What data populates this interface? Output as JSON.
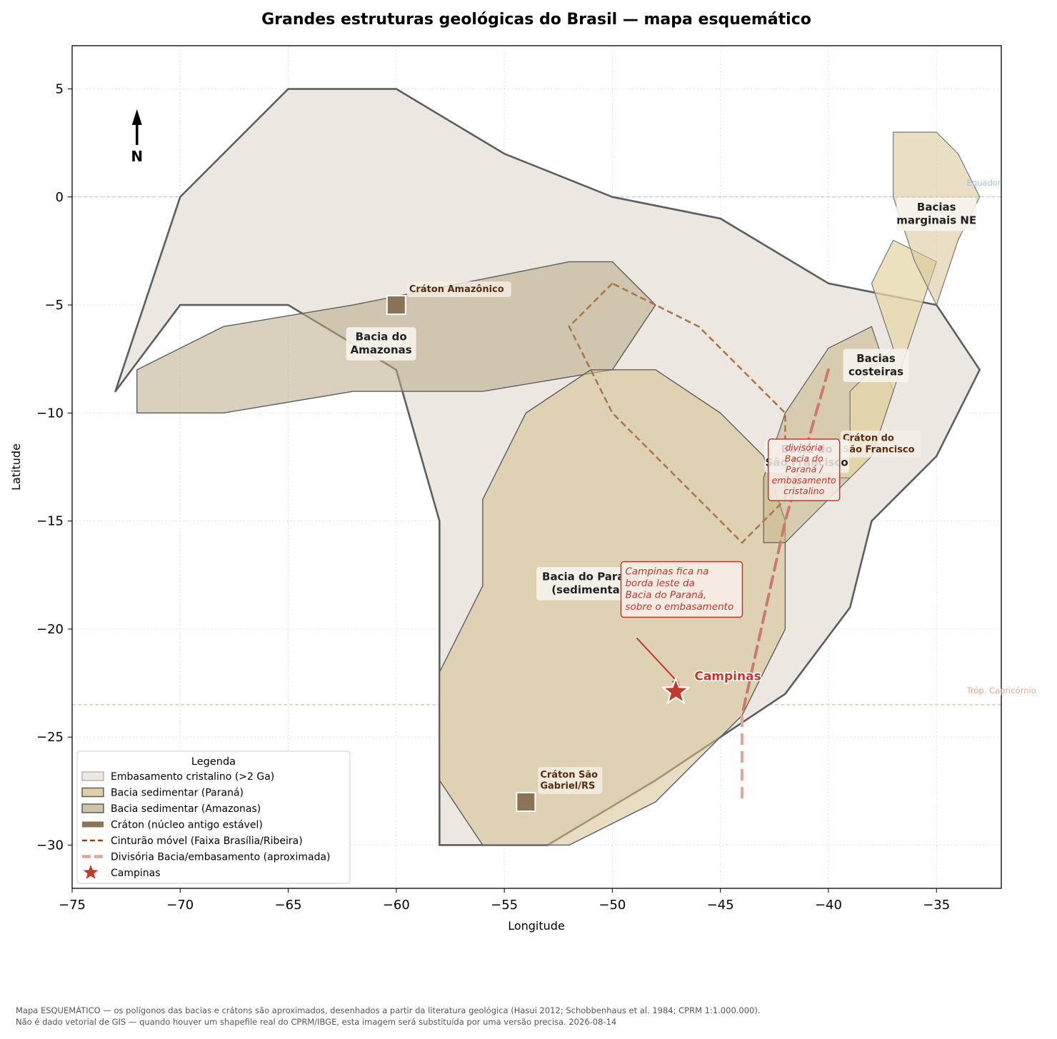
{
  "title": "Grandes estruturas geológicas do Brasil — mapa esquemático",
  "axes": {
    "xlabel": "Longitude",
    "ylabel": "Latitude",
    "xlim": [
      -75,
      -32
    ],
    "ylim": [
      -32,
      7
    ],
    "xticks": [
      -75,
      -70,
      -65,
      -60,
      -55,
      -50,
      -45,
      -40,
      -35
    ],
    "yticks": [
      5,
      0,
      -5,
      -10,
      -15,
      -20,
      -25,
      -30
    ],
    "xtick_labels": [
      "−75",
      "−70",
      "−65",
      "−60",
      "−55",
      "−50",
      "−45",
      "−40",
      "−35"
    ],
    "ytick_labels": [
      "5",
      "0",
      "−5",
      "−10",
      "−15",
      "−20",
      "−25",
      "−30"
    ],
    "grid": true
  },
  "north_arrow": "N",
  "colors": {
    "embasamento": "#ece8e1",
    "parana": "#dfcfaa",
    "amazonas": "#cfc4aa",
    "coastal": "#e6d9b5",
    "craton": "#8b7356",
    "cinturao": "#a8794a",
    "divisoria": "#cc7a6d",
    "campinas": "#c0392b",
    "equator": "#9fc3dd",
    "tropic": "#e8a98f"
  },
  "reference_lines": [
    {
      "name": "equator",
      "label": "Equador",
      "lat": 0
    },
    {
      "name": "tropic",
      "label": "Tróp. Capricórnio",
      "lat": -23.5
    }
  ],
  "regions": [
    {
      "name": "embasamento",
      "coords": [
        [
          -73,
          -9
        ],
        [
          -70,
          0
        ],
        [
          -65,
          5
        ],
        [
          -60,
          5
        ],
        [
          -55,
          2
        ],
        [
          -50,
          0
        ],
        [
          -45,
          -1
        ],
        [
          -40,
          -4
        ],
        [
          -35,
          -5
        ],
        [
          -33,
          -8
        ],
        [
          -35,
          -12
        ],
        [
          -38,
          -15
        ],
        [
          -39,
          -19
        ],
        [
          -42,
          -23
        ],
        [
          -45,
          -25
        ],
        [
          -48,
          -27
        ],
        [
          -53,
          -30
        ],
        [
          -58,
          -30
        ],
        [
          -58,
          -15
        ],
        [
          -60,
          -8
        ],
        [
          -65,
          -5
        ],
        [
          -70,
          -5
        ]
      ]
    },
    {
      "name": "amazonas",
      "coords": [
        [
          -72,
          -8
        ],
        [
          -68,
          -6
        ],
        [
          -62,
          -5
        ],
        [
          -57,
          -4
        ],
        [
          -52,
          -3
        ],
        [
          -50,
          -3
        ],
        [
          -48,
          -5
        ],
        [
          -50,
          -8
        ],
        [
          -56,
          -9
        ],
        [
          -62,
          -9
        ],
        [
          -68,
          -10
        ],
        [
          -72,
          -10
        ]
      ]
    },
    {
      "name": "parana",
      "coords": [
        [
          -56,
          -14
        ],
        [
          -54,
          -10
        ],
        [
          -51,
          -8
        ],
        [
          -48,
          -8
        ],
        [
          -45,
          -10
        ],
        [
          -43,
          -12
        ],
        [
          -42,
          -15
        ],
        [
          -42,
          -20
        ],
        [
          -44,
          -24
        ],
        [
          -48,
          -28
        ],
        [
          -52,
          -30
        ],
        [
          -56,
          -30
        ],
        [
          -58,
          -27
        ],
        [
          -58,
          -22
        ],
        [
          -56,
          -18
        ]
      ]
    },
    {
      "name": "sao-francisco",
      "coords": [
        [
          -43,
          -13
        ],
        [
          -42,
          -10
        ],
        [
          -40,
          -7
        ],
        [
          -38,
          -6
        ],
        [
          -37,
          -9
        ],
        [
          -38,
          -12
        ],
        [
          -40,
          -14
        ],
        [
          -42,
          -16
        ],
        [
          -43,
          -16
        ]
      ]
    },
    {
      "name": "costeiras",
      "coords": [
        [
          -38,
          -4
        ],
        [
          -37,
          -2
        ],
        [
          -35,
          -3
        ],
        [
          -36,
          -6
        ],
        [
          -37,
          -9
        ],
        [
          -38,
          -12
        ],
        [
          -39,
          -13
        ],
        [
          -40,
          -13
        ],
        [
          -39,
          -11
        ],
        [
          -39,
          -9
        ],
        [
          -37,
          -7
        ]
      ]
    },
    {
      "name": "marginais-ne",
      "coords": [
        [
          -37,
          3
        ],
        [
          -35,
          3
        ],
        [
          -34,
          2
        ],
        [
          -33,
          0
        ],
        [
          -34,
          -2
        ],
        [
          -35,
          -5
        ],
        [
          -36,
          -3
        ],
        [
          -37,
          0
        ]
      ]
    }
  ],
  "cinturao": [
    [
      -50,
      -4
    ],
    [
      -52,
      -6
    ],
    [
      -50,
      -10
    ],
    [
      -44,
      -16
    ],
    [
      -42,
      -14
    ],
    [
      -42,
      -10
    ],
    [
      -44,
      -8
    ],
    [
      -46,
      -6
    ],
    [
      -48,
      -5
    ],
    [
      -50,
      -4
    ]
  ],
  "divisoria": [
    [
      -40,
      -8
    ],
    [
      -42,
      -15
    ],
    [
      -44,
      -24
    ],
    [
      -44,
      -28
    ]
  ],
  "cratons": [
    {
      "name": "craton-amazonico",
      "lon": -60,
      "lat": -5,
      "label": "Cráton Amazônico"
    },
    {
      "name": "craton-sao-gabriel",
      "lon": -54,
      "lat": -28,
      "label": "Cráton São\nGabriel/RS"
    },
    {
      "name": "craton-sao-francisco",
      "lon": -40,
      "lat": -11.5,
      "label": "Cráton do\nSão Francisco"
    }
  ],
  "region_labels": [
    {
      "name": "bacia-amazonas",
      "text": "Bacia do\nAmazonas",
      "lon": -60.7,
      "lat": -6.8
    },
    {
      "name": "bacias-marginais",
      "text": "Bacias\nmarginais NE",
      "lon": -35,
      "lat": -0.8
    },
    {
      "name": "bacias-costeiras",
      "text": "Bacias\ncosteiras",
      "lon": -37.8,
      "lat": -7.8
    },
    {
      "name": "bacia-sao-francisco",
      "text": "Bacia do\nSão Francisco",
      "lon": -41,
      "lat": -12
    },
    {
      "name": "bacia-parana",
      "text": "Bacia do Paraná\n(sedimentar)",
      "lon": -51,
      "lat": -17.9
    }
  ],
  "campinas": {
    "label": "Campinas",
    "lon": -47.06,
    "lat": -22.9
  },
  "annotations": [
    {
      "name": "campinas-note",
      "text": "Campinas fica na\nborda leste da\nBacia do Paraná,\nsobre o embasamento",
      "lon": -49.6,
      "lat": -18.1
    },
    {
      "name": "divisoria-note",
      "text": "divisória\nBacia do\nParaná /\nembasamento\ncristalino",
      "lon": -41,
      "lat": -12.7
    }
  ],
  "legend": {
    "title": "Legenda",
    "items": [
      {
        "name": "legend-embasamento",
        "type": "patch",
        "color": "#ece8e1",
        "edge": "#b9b2a8",
        "label": "Embasamento cristalino (>2 Ga)"
      },
      {
        "name": "legend-parana",
        "type": "patch",
        "color": "#dfcfaa",
        "edge": "#555555",
        "label": "Bacia sedimentar (Paraná)"
      },
      {
        "name": "legend-amazonas",
        "type": "patch",
        "color": "#cfc4aa",
        "edge": "#555555",
        "label": "Bacia sedimentar (Amazonas)"
      },
      {
        "name": "legend-craton",
        "type": "thickline",
        "color": "#8b7356",
        "label": "Cráton (núcleo antigo estável)"
      },
      {
        "name": "legend-cinturao",
        "type": "dashed",
        "color": "#8b4513",
        "label": "Cinturão móvel (Faixa Brasília/Ribeira)"
      },
      {
        "name": "legend-divisoria",
        "type": "dashedthick",
        "color": "#e2a79c",
        "label": "Divisória Bacia/embasamento (aproximada)"
      },
      {
        "name": "legend-campinas",
        "type": "star",
        "color": "#c0392b",
        "label": "Campinas"
      }
    ]
  },
  "footnote": {
    "line1": "Mapa ESQUEMÁTICO — os polígonos das bacias e crátons são aproximados, desenhados a partir da literatura geológica (Hasui 2012; Schobbenhaus et al. 1984; CPRM 1:1.000.000).",
    "line2": "Não é dado vetorial de GIS — quando houver um shapefile real do CPRM/IBGE, esta imagem será substituída por uma versão precisa. 2026-08-14"
  }
}
